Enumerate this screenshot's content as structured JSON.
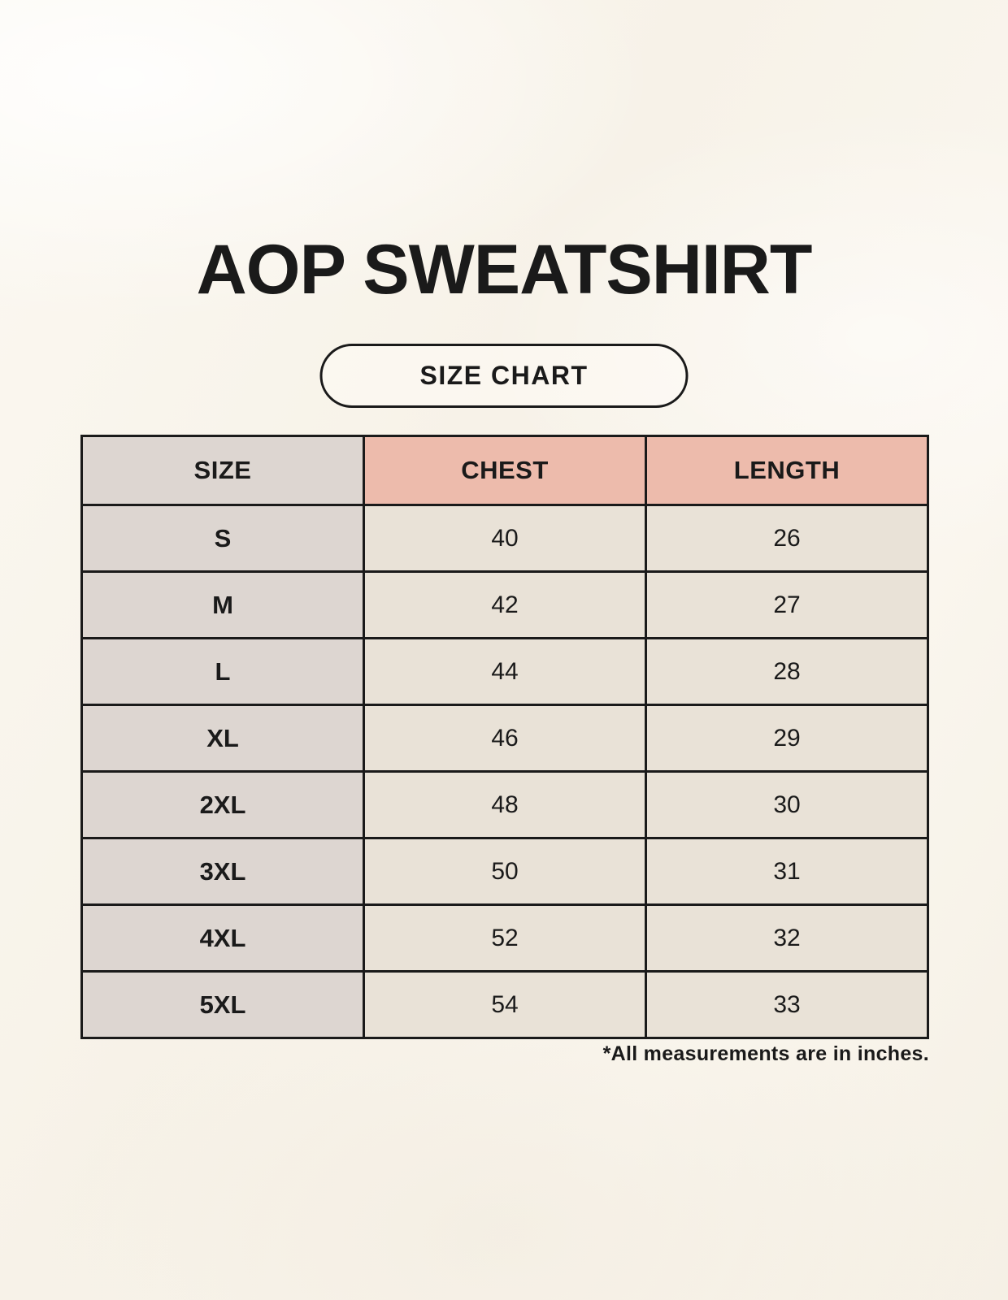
{
  "page": {
    "title": "AOP SWEATSHIRT",
    "badge_label": "SIZE CHART",
    "footnote": "*All measurements are in inches."
  },
  "colors": {
    "page_background": "#faf6ee",
    "table_border": "#1a1a1a",
    "size_column_background": "#ddd6d1",
    "header_accent_background": "#edbbac",
    "data_cell_background": "#e9e2d7",
    "text": "#1a1a1a"
  },
  "chart_data": {
    "type": "table",
    "title": "AOP SWEATSHIRT",
    "subtitle": "SIZE CHART",
    "columns": [
      "SIZE",
      "CHEST",
      "LENGTH"
    ],
    "rows": [
      [
        "S",
        "40",
        "26"
      ],
      [
        "M",
        "42",
        "27"
      ],
      [
        "L",
        "44",
        "28"
      ],
      [
        "XL",
        "46",
        "29"
      ],
      [
        "2XL",
        "48",
        "30"
      ],
      [
        "3XL",
        "50",
        "31"
      ],
      [
        "4XL",
        "52",
        "32"
      ],
      [
        "5XL",
        "54",
        "33"
      ]
    ],
    "units_note": "*All measurements are in inches."
  }
}
